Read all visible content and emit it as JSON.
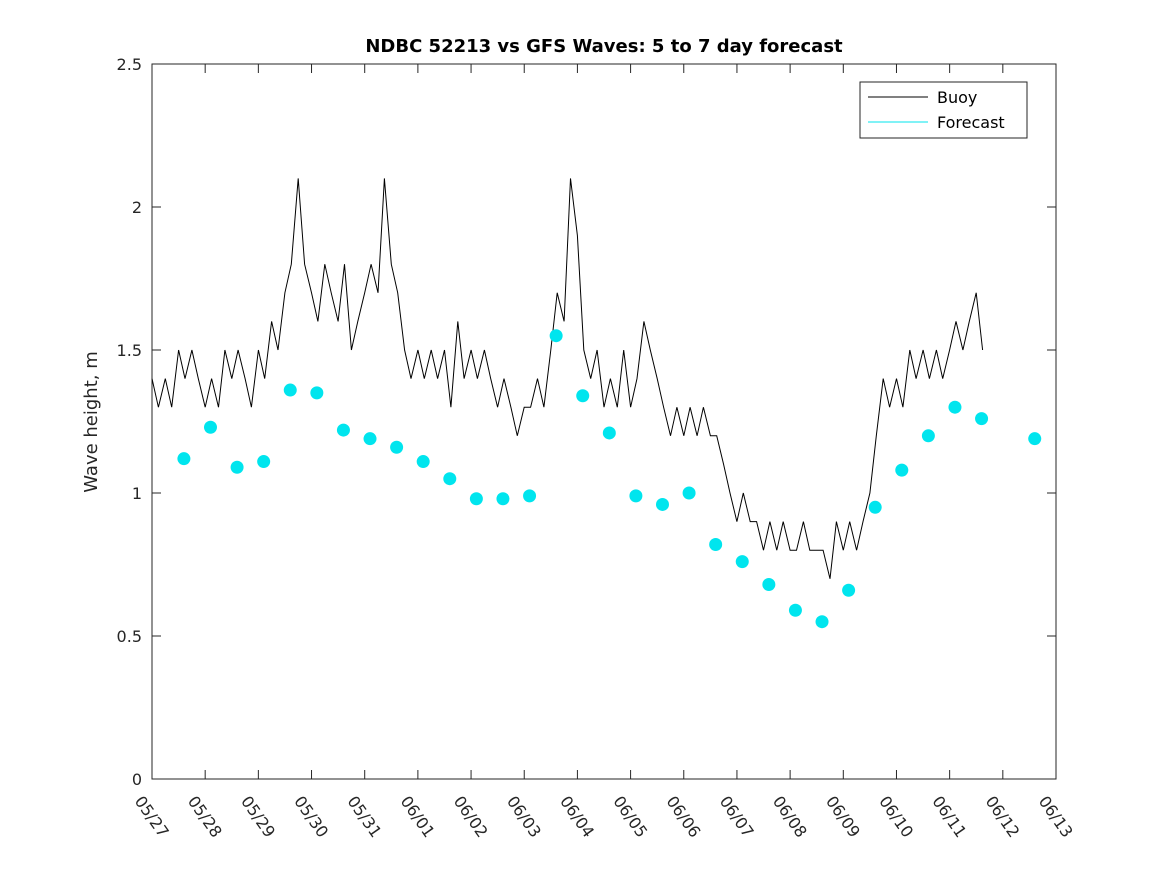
{
  "chart_data": {
    "type": "line",
    "title": "NDBC 52213 vs GFS Waves: 5 to 7 day forecast",
    "xlabel": "",
    "ylabel": "Wave height, m",
    "xlim": [
      0,
      17
    ],
    "ylim": [
      0,
      2.5
    ],
    "x_tick_labels": [
      "05/27",
      "05/28",
      "05/29",
      "05/30",
      "05/31",
      "06/01",
      "06/02",
      "06/03",
      "06/04",
      "06/05",
      "06/06",
      "06/07",
      "06/08",
      "06/09",
      "06/10",
      "06/11",
      "06/12",
      "06/13"
    ],
    "y_ticks": [
      0,
      0.5,
      1,
      1.5,
      2,
      2.5
    ],
    "y_tick_labels": [
      "0",
      "0.5",
      "1",
      "1.5",
      "2",
      "2.5"
    ],
    "grid": false,
    "legend": {
      "location": "top-right",
      "entries": [
        {
          "label": "Buoy",
          "color": "#000000"
        },
        {
          "label": "Forecast",
          "color": "#00e5ee"
        }
      ]
    },
    "series": [
      {
        "name": "Buoy",
        "color": "#000000",
        "points": [
          [
            0.0,
            1.4
          ],
          [
            0.12,
            1.3
          ],
          [
            0.25,
            1.4
          ],
          [
            0.37,
            1.3
          ],
          [
            0.5,
            1.5
          ],
          [
            0.62,
            1.4
          ],
          [
            0.75,
            1.5
          ],
          [
            0.87,
            1.4
          ],
          [
            1.0,
            1.3
          ],
          [
            1.12,
            1.4
          ],
          [
            1.25,
            1.3
          ],
          [
            1.37,
            1.5
          ],
          [
            1.5,
            1.4
          ],
          [
            1.62,
            1.5
          ],
          [
            1.75,
            1.4
          ],
          [
            1.87,
            1.3
          ],
          [
            2.0,
            1.5
          ],
          [
            2.12,
            1.4
          ],
          [
            2.25,
            1.6
          ],
          [
            2.37,
            1.5
          ],
          [
            2.5,
            1.7
          ],
          [
            2.62,
            1.8
          ],
          [
            2.75,
            2.1
          ],
          [
            2.87,
            1.8
          ],
          [
            3.0,
            1.7
          ],
          [
            3.12,
            1.6
          ],
          [
            3.25,
            1.8
          ],
          [
            3.37,
            1.7
          ],
          [
            3.5,
            1.6
          ],
          [
            3.62,
            1.8
          ],
          [
            3.75,
            1.5
          ],
          [
            3.87,
            1.6
          ],
          [
            4.0,
            1.7
          ],
          [
            4.12,
            1.8
          ],
          [
            4.25,
            1.7
          ],
          [
            4.37,
            2.1
          ],
          [
            4.5,
            1.8
          ],
          [
            4.62,
            1.7
          ],
          [
            4.75,
            1.5
          ],
          [
            4.87,
            1.4
          ],
          [
            5.0,
            1.5
          ],
          [
            5.12,
            1.4
          ],
          [
            5.25,
            1.5
          ],
          [
            5.37,
            1.4
          ],
          [
            5.5,
            1.5
          ],
          [
            5.62,
            1.3
          ],
          [
            5.75,
            1.6
          ],
          [
            5.87,
            1.4
          ],
          [
            6.0,
            1.5
          ],
          [
            6.12,
            1.4
          ],
          [
            6.25,
            1.5
          ],
          [
            6.37,
            1.4
          ],
          [
            6.5,
            1.3
          ],
          [
            6.62,
            1.4
          ],
          [
            6.75,
            1.3
          ],
          [
            6.87,
            1.2
          ],
          [
            7.0,
            1.3
          ],
          [
            7.12,
            1.3
          ],
          [
            7.25,
            1.4
          ],
          [
            7.37,
            1.3
          ],
          [
            7.5,
            1.5
          ],
          [
            7.62,
            1.7
          ],
          [
            7.75,
            1.6
          ],
          [
            7.87,
            2.1
          ],
          [
            8.0,
            1.9
          ],
          [
            8.12,
            1.5
          ],
          [
            8.25,
            1.4
          ],
          [
            8.37,
            1.5
          ],
          [
            8.5,
            1.3
          ],
          [
            8.62,
            1.4
          ],
          [
            8.75,
            1.3
          ],
          [
            8.87,
            1.5
          ],
          [
            9.0,
            1.3
          ],
          [
            9.12,
            1.4
          ],
          [
            9.25,
            1.6
          ],
          [
            9.37,
            1.5
          ],
          [
            9.5,
            1.4
          ],
          [
            9.62,
            1.3
          ],
          [
            9.75,
            1.2
          ],
          [
            9.87,
            1.3
          ],
          [
            10.0,
            1.2
          ],
          [
            10.12,
            1.3
          ],
          [
            10.25,
            1.2
          ],
          [
            10.37,
            1.3
          ],
          [
            10.5,
            1.2
          ],
          [
            10.62,
            1.2
          ],
          [
            10.75,
            1.1
          ],
          [
            10.87,
            1.0
          ],
          [
            11.0,
            0.9
          ],
          [
            11.12,
            1.0
          ],
          [
            11.25,
            0.9
          ],
          [
            11.37,
            0.9
          ],
          [
            11.5,
            0.8
          ],
          [
            11.62,
            0.9
          ],
          [
            11.75,
            0.8
          ],
          [
            11.87,
            0.9
          ],
          [
            12.0,
            0.8
          ],
          [
            12.12,
            0.8
          ],
          [
            12.25,
            0.9
          ],
          [
            12.37,
            0.8
          ],
          [
            12.5,
            0.8
          ],
          [
            12.62,
            0.8
          ],
          [
            12.75,
            0.7
          ],
          [
            12.87,
            0.9
          ],
          [
            13.0,
            0.8
          ],
          [
            13.12,
            0.9
          ],
          [
            13.25,
            0.8
          ],
          [
            13.37,
            0.9
          ],
          [
            13.5,
            1.0
          ],
          [
            13.62,
            1.2
          ],
          [
            13.75,
            1.4
          ],
          [
            13.87,
            1.3
          ],
          [
            14.0,
            1.4
          ],
          [
            14.12,
            1.3
          ],
          [
            14.25,
            1.5
          ],
          [
            14.37,
            1.4
          ],
          [
            14.5,
            1.5
          ],
          [
            14.62,
            1.4
          ],
          [
            14.75,
            1.5
          ],
          [
            14.87,
            1.4
          ],
          [
            15.0,
            1.5
          ],
          [
            15.12,
            1.6
          ],
          [
            15.25,
            1.5
          ],
          [
            15.37,
            1.6
          ],
          [
            15.5,
            1.7
          ],
          [
            15.62,
            1.5
          ]
        ]
      },
      {
        "name": "Forecast",
        "color": "#00e5ee",
        "points": [
          [
            0.6,
            1.12
          ],
          [
            1.1,
            1.23
          ],
          [
            1.6,
            1.09
          ],
          [
            2.1,
            1.11
          ],
          [
            2.6,
            1.36
          ],
          [
            3.1,
            1.35
          ],
          [
            3.6,
            1.22
          ],
          [
            4.1,
            1.19
          ],
          [
            4.6,
            1.16
          ],
          [
            5.1,
            1.11
          ],
          [
            5.6,
            1.05
          ],
          [
            6.1,
            0.98
          ],
          [
            6.6,
            0.98
          ],
          [
            7.1,
            0.99
          ],
          [
            7.6,
            1.55
          ],
          [
            8.1,
            1.34
          ],
          [
            8.6,
            1.21
          ],
          [
            9.1,
            0.99
          ],
          [
            9.6,
            0.96
          ],
          [
            10.1,
            1.0
          ],
          [
            10.6,
            0.82
          ],
          [
            11.1,
            0.76
          ],
          [
            11.6,
            0.68
          ],
          [
            12.1,
            0.59
          ],
          [
            12.6,
            0.55
          ],
          [
            13.1,
            0.66
          ],
          [
            13.6,
            0.95
          ],
          [
            14.1,
            1.08
          ],
          [
            14.6,
            1.2
          ],
          [
            15.1,
            1.3
          ],
          [
            15.6,
            1.26
          ],
          [
            16.6,
            1.19
          ]
        ]
      }
    ]
  }
}
